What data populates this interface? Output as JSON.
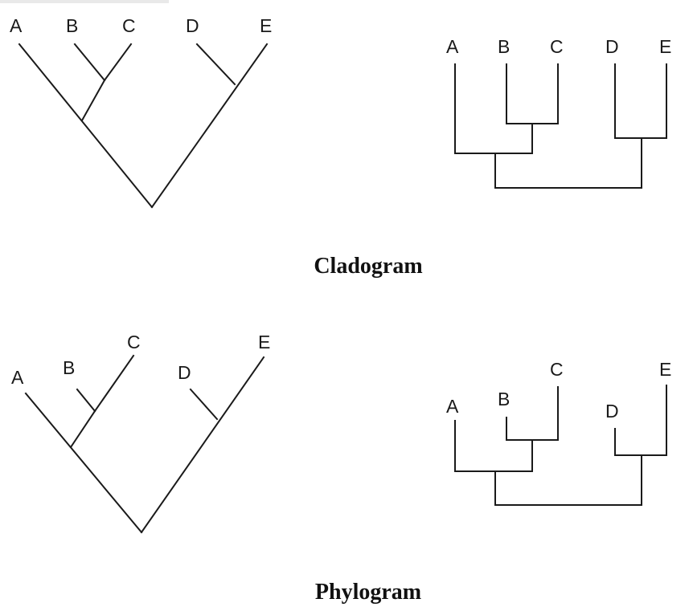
{
  "sections": [
    {
      "caption": "Cladogram",
      "diagrams": [
        {
          "id": "cladogram-diagonal",
          "leaves": [
            "A",
            "B",
            "C",
            "D",
            "E"
          ]
        },
        {
          "id": "cladogram-rectangular",
          "leaves": [
            "A",
            "B",
            "C",
            "D",
            "E"
          ]
        }
      ]
    },
    {
      "caption": "Phylogram",
      "diagrams": [
        {
          "id": "phylogram-diagonal",
          "leaves": [
            "A",
            "B",
            "C",
            "D",
            "E"
          ]
        },
        {
          "id": "phylogram-rectangular",
          "leaves": [
            "A",
            "B",
            "C",
            "D",
            "E"
          ]
        }
      ]
    }
  ]
}
